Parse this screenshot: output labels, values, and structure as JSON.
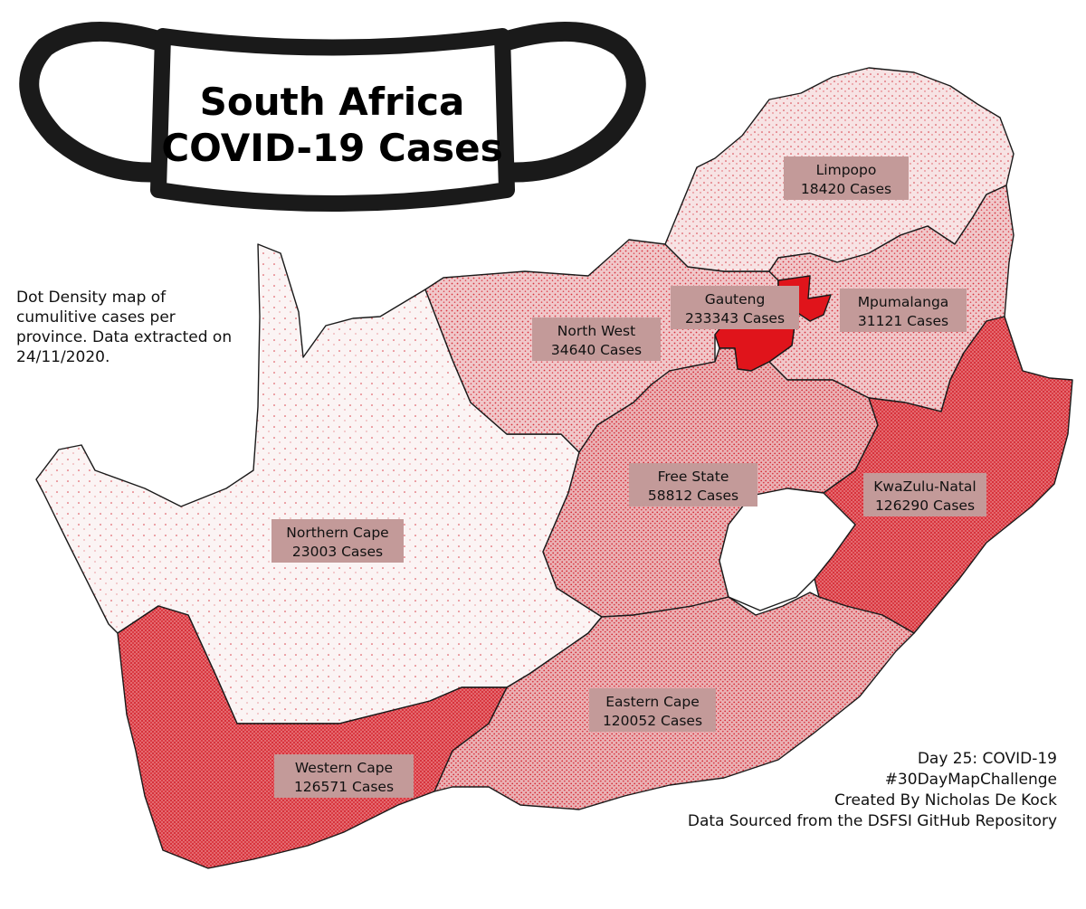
{
  "title": {
    "line1": "South Africa",
    "line2": "COVID-19 Cases"
  },
  "description": [
    "Dot Density map of",
    "cumulitive cases per",
    "province. Data extracted on",
    "24/11/2020."
  ],
  "credits": [
    "Day 25: COVID-19",
    "#30DayMapChallenge",
    "Created By Nicholas De Kock",
    "Data Sourced from the DSFSI GitHub Repository"
  ],
  "colors": {
    "dot": "#e0141b",
    "outline": "#1a1a1a",
    "label_bg": "#c39a99",
    "mask": "#1a1a1a"
  },
  "icons": {
    "mask": "face-mask-icon"
  },
  "provinces": [
    {
      "id": "limpopo",
      "name": "Limpopo",
      "cases_text": "18420 Cases",
      "cases": 18420
    },
    {
      "id": "gauteng",
      "name": "Gauteng",
      "cases_text": "233343 Cases",
      "cases": 233343
    },
    {
      "id": "mpumalanga",
      "name": "Mpumalanga",
      "cases_text": "31121 Cases",
      "cases": 31121
    },
    {
      "id": "north-west",
      "name": "North West",
      "cases_text": "34640 Cases",
      "cases": 34640
    },
    {
      "id": "free-state",
      "name": "Free State",
      "cases_text": "58812 Cases",
      "cases": 58812
    },
    {
      "id": "kwazulu-natal",
      "name": "KwaZulu-Natal",
      "cases_text": "126290 Cases",
      "cases": 126290
    },
    {
      "id": "northern-cape",
      "name": "Northern Cape",
      "cases_text": "23003 Cases",
      "cases": 23003
    },
    {
      "id": "eastern-cape",
      "name": "Eastern Cape",
      "cases_text": "120052 Cases",
      "cases": 120052
    },
    {
      "id": "western-cape",
      "name": "Western Cape",
      "cases_text": "126571 Cases",
      "cases": 126571
    }
  ]
}
